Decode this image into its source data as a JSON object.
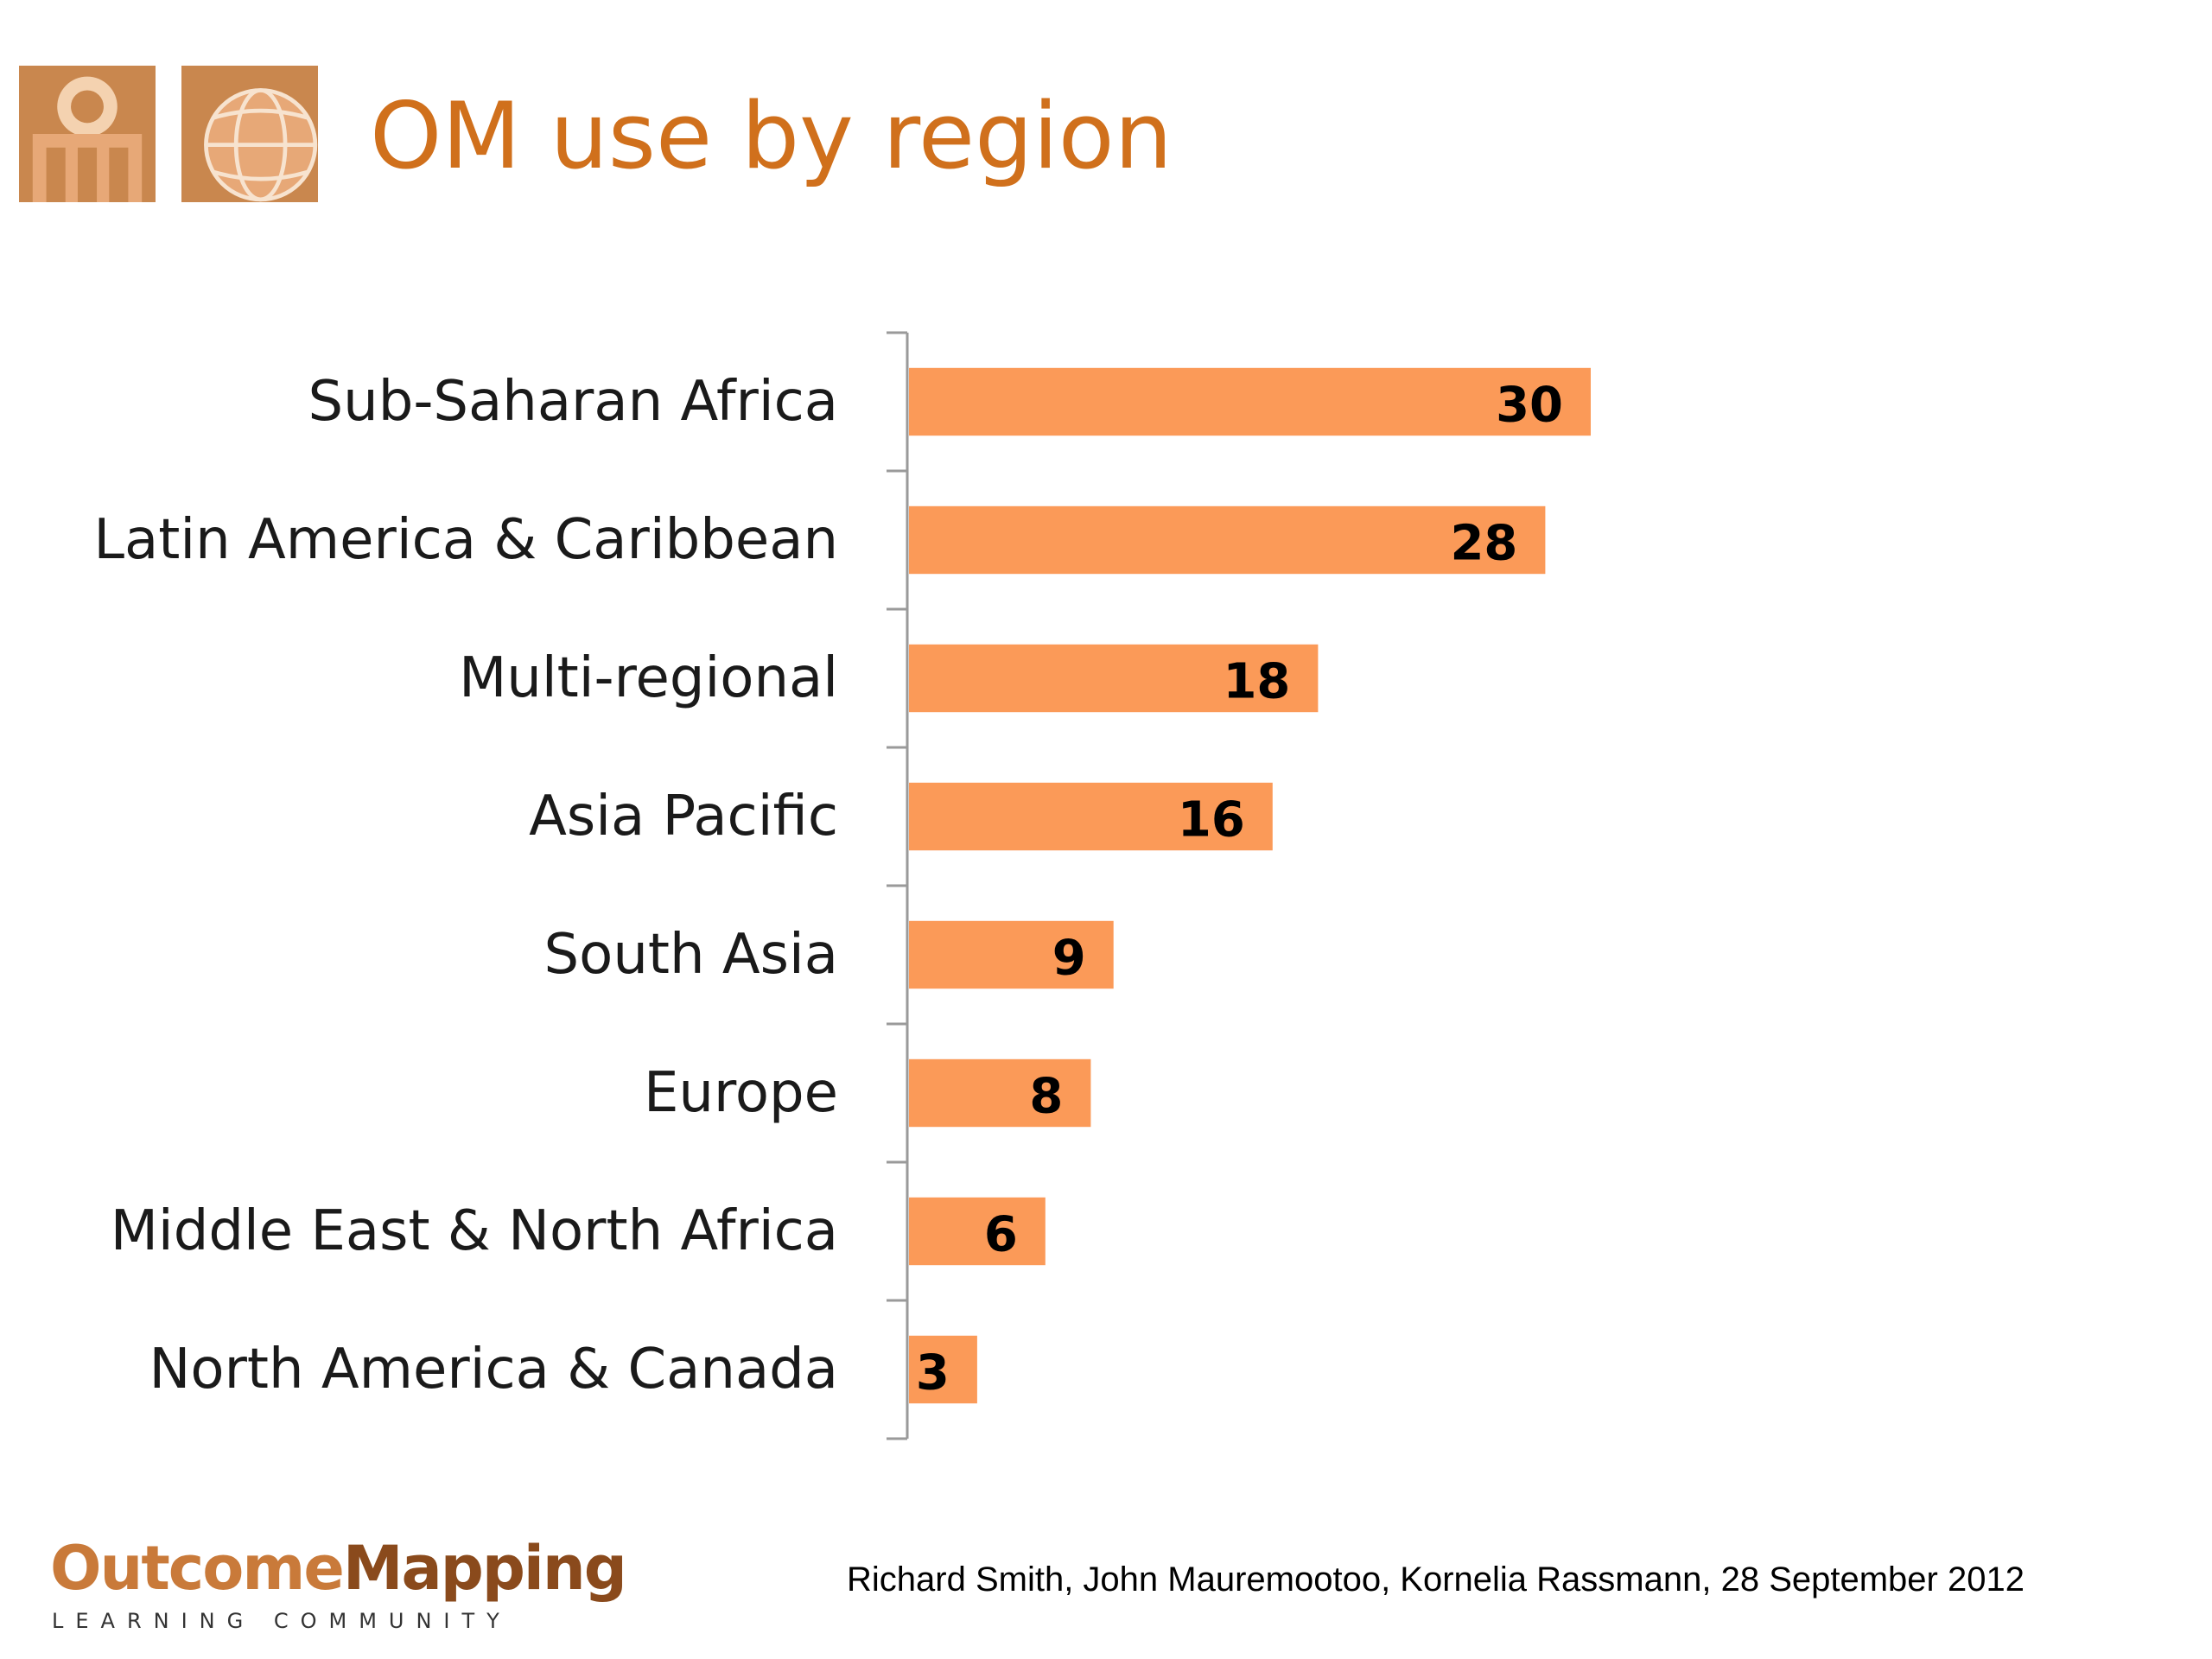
{
  "slide": {
    "title": "OM use by region",
    "accent_color": "#d0701c",
    "bar_color": "#fb9a58"
  },
  "footer": {
    "brand_part1": "Outcome",
    "brand_part2": "Mapping",
    "brand_subtitle": "LEARNING COMMUNITY",
    "credit": "Richard Smith, John Mauremootoo, Kornelia Rassmann, 28 September 2012"
  },
  "logos": {
    "left": "om-monogram-logo",
    "right": "globe-logo"
  },
  "chart_data": {
    "type": "bar",
    "orientation": "horizontal",
    "categories": [
      "Sub-Saharan Africa",
      "Latin America & Caribbean",
      "Multi-regional",
      "Asia Pacific",
      "South Asia",
      "Europe",
      "Middle East & North Africa",
      "North America & Canada"
    ],
    "values": [
      30,
      28,
      18,
      16,
      9,
      8,
      6,
      3
    ],
    "title": "",
    "xlabel": "",
    "ylabel": "",
    "xlim": [
      0,
      30
    ],
    "grid": false,
    "legend": "none",
    "data_labels": true
  }
}
